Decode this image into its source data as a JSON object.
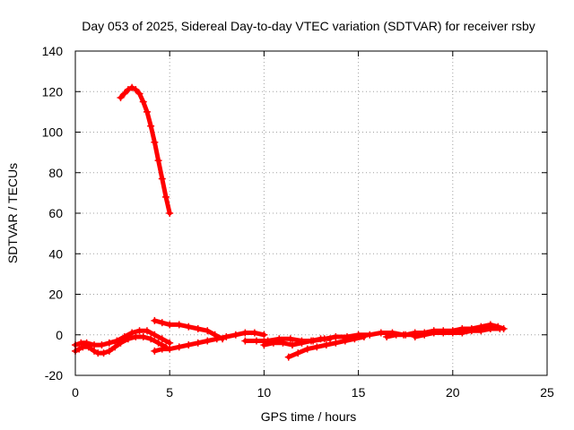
{
  "chart_data": {
    "type": "scatter",
    "title": "Day 053 of 2025, Sidereal Day-to-day VTEC variation (SDTVAR) for receiver rsby",
    "xlabel": "GPS time / hours",
    "ylabel": "SDTVAR / TECUs",
    "xlim": [
      0,
      25
    ],
    "ylim": [
      -20,
      140
    ],
    "xticks": [
      "0",
      "5",
      "10",
      "15",
      "20",
      "25"
    ],
    "yticks": [
      "-20",
      "0",
      "20",
      "40",
      "60",
      "80",
      "100",
      "120",
      "140"
    ],
    "grid": true,
    "legend": "none",
    "series_color": "#ff0000",
    "series": [
      {
        "points": [
          [
            2.4,
            117
          ],
          [
            2.6,
            119
          ],
          [
            2.8,
            121
          ],
          [
            3.0,
            122
          ],
          [
            3.2,
            121
          ],
          [
            3.4,
            119
          ],
          [
            3.6,
            115
          ],
          [
            3.8,
            110
          ],
          [
            4.0,
            103
          ],
          [
            4.2,
            95
          ],
          [
            4.4,
            86
          ],
          [
            4.6,
            77
          ],
          [
            4.8,
            68
          ],
          [
            5.0,
            60
          ]
        ]
      },
      {
        "points": [
          [
            0.0,
            -5
          ],
          [
            0.3,
            -4
          ],
          [
            0.6,
            -4
          ],
          [
            1.0,
            -5
          ],
          [
            1.4,
            -5
          ],
          [
            1.8,
            -4
          ],
          [
            2.2,
            -3
          ],
          [
            2.6,
            -1
          ],
          [
            3.0,
            1
          ],
          [
            3.4,
            2
          ],
          [
            3.8,
            2
          ],
          [
            4.2,
            0
          ],
          [
            4.6,
            -2
          ],
          [
            5.0,
            -4
          ]
        ]
      },
      {
        "points": [
          [
            0.0,
            -8
          ],
          [
            0.2,
            -7
          ],
          [
            0.4,
            -6
          ],
          [
            0.7,
            -6
          ],
          [
            1.0,
            -8
          ],
          [
            1.2,
            -9
          ],
          [
            1.5,
            -9
          ],
          [
            1.8,
            -8
          ],
          [
            2.1,
            -6
          ],
          [
            2.4,
            -4
          ],
          [
            2.8,
            -2
          ],
          [
            3.2,
            -1
          ],
          [
            3.6,
            -1
          ],
          [
            4.0,
            -2
          ],
          [
            4.4,
            -4
          ],
          [
            4.8,
            -6
          ]
        ]
      },
      {
        "points": [
          [
            4.2,
            7
          ],
          [
            4.6,
            6
          ],
          [
            5.0,
            5
          ],
          [
            5.5,
            5
          ],
          [
            6.0,
            4
          ],
          [
            6.5,
            3
          ],
          [
            7.0,
            2
          ],
          [
            7.4,
            0
          ],
          [
            7.8,
            -2
          ]
        ]
      },
      {
        "points": [
          [
            4.2,
            -8
          ],
          [
            4.6,
            -7
          ],
          [
            5.0,
            -7
          ],
          [
            5.5,
            -6
          ],
          [
            6.0,
            -5
          ],
          [
            6.5,
            -4
          ],
          [
            7.0,
            -3
          ],
          [
            7.5,
            -2
          ],
          [
            8.0,
            -1
          ],
          [
            8.5,
            0
          ],
          [
            9.0,
            1
          ],
          [
            9.5,
            1
          ],
          [
            10.0,
            0
          ]
        ]
      },
      {
        "points": [
          [
            9.0,
            -3
          ],
          [
            9.6,
            -3
          ],
          [
            10.2,
            -3
          ],
          [
            10.8,
            -2
          ],
          [
            11.4,
            -2
          ],
          [
            12.0,
            -3
          ],
          [
            12.6,
            -3
          ],
          [
            13.2,
            -2
          ],
          [
            13.8,
            -1
          ],
          [
            14.4,
            -1
          ],
          [
            15.0,
            0
          ],
          [
            15.6,
            0
          ],
          [
            16.2,
            1
          ],
          [
            16.8,
            1
          ],
          [
            17.4,
            0
          ],
          [
            18.0,
            0
          ]
        ]
      },
      {
        "points": [
          [
            10.0,
            -5
          ],
          [
            10.5,
            -4
          ],
          [
            11.0,
            -4
          ],
          [
            11.5,
            -5
          ],
          [
            12.0,
            -4
          ],
          [
            12.5,
            -3
          ],
          [
            13.0,
            -2
          ],
          [
            13.5,
            -2
          ]
        ]
      },
      {
        "points": [
          [
            11.3,
            -11
          ],
          [
            11.8,
            -9
          ],
          [
            12.3,
            -7
          ],
          [
            12.8,
            -6
          ],
          [
            13.3,
            -5
          ],
          [
            13.8,
            -4
          ],
          [
            14.3,
            -3
          ],
          [
            14.8,
            -2
          ],
          [
            15.3,
            -1
          ]
        ]
      },
      {
        "points": [
          [
            16.5,
            -1
          ],
          [
            17.0,
            0
          ],
          [
            17.5,
            0
          ],
          [
            18.0,
            1
          ],
          [
            18.5,
            1
          ],
          [
            19.0,
            2
          ],
          [
            19.5,
            2
          ],
          [
            20.0,
            2
          ],
          [
            20.5,
            3
          ],
          [
            21.0,
            3
          ],
          [
            21.5,
            4
          ],
          [
            22.0,
            5
          ],
          [
            22.4,
            4
          ],
          [
            22.7,
            3
          ]
        ]
      },
      {
        "points": [
          [
            18.0,
            -1
          ],
          [
            18.5,
            0
          ],
          [
            19.0,
            1
          ],
          [
            19.5,
            1
          ],
          [
            20.0,
            1
          ],
          [
            20.5,
            1
          ],
          [
            21.0,
            2
          ],
          [
            21.5,
            2
          ],
          [
            22.0,
            3
          ],
          [
            22.5,
            3
          ]
        ]
      }
    ]
  }
}
